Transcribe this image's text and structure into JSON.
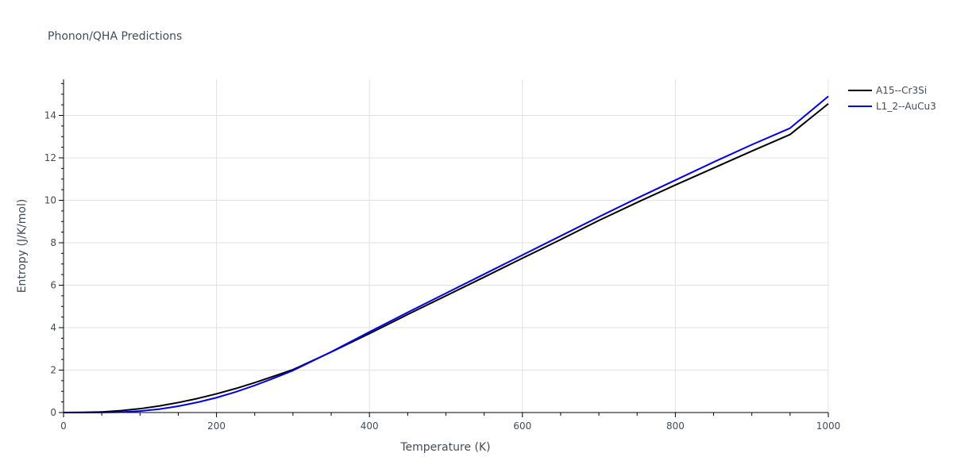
{
  "chart_data": {
    "type": "line",
    "title": "Phonon/QHA Predictions",
    "xlabel": "Temperature (K)",
    "ylabel": "Entropy (J/K/mol)",
    "xlim": [
      0,
      1000
    ],
    "ylim": [
      0,
      15.7
    ],
    "xticks": [
      0,
      200,
      400,
      600,
      800,
      1000
    ],
    "yticks": [
      0,
      2,
      4,
      6,
      8,
      10,
      12,
      14
    ],
    "grid": true,
    "legend_position": "top-right",
    "series": [
      {
        "name": "A15--Cr3Si",
        "color": "#000000",
        "x": [
          0,
          25,
          50,
          75,
          100,
          125,
          150,
          175,
          200,
          225,
          250,
          275,
          300,
          350,
          400,
          450,
          500,
          550,
          600,
          650,
          700,
          750,
          800,
          850,
          900,
          950,
          1000
        ],
        "y": [
          0,
          0.01,
          0.03,
          0.09,
          0.18,
          0.31,
          0.47,
          0.66,
          0.88,
          1.13,
          1.41,
          1.71,
          2.02,
          2.85,
          3.72,
          4.62,
          5.5,
          6.38,
          7.27,
          8.15,
          9.05,
          9.9,
          10.72,
          11.52,
          12.32,
          13.1,
          14.55
        ]
      },
      {
        "name": "L1_2--AuCu3",
        "color": "#0000ee",
        "x": [
          0,
          25,
          50,
          75,
          100,
          125,
          150,
          175,
          200,
          225,
          250,
          275,
          300,
          350,
          400,
          450,
          500,
          550,
          600,
          650,
          700,
          750,
          800,
          850,
          900,
          950,
          1000
        ],
        "y": [
          0,
          0,
          0.005,
          0.02,
          0.07,
          0.16,
          0.3,
          0.48,
          0.7,
          0.97,
          1.28,
          1.62,
          1.98,
          2.86,
          3.8,
          4.72,
          5.62,
          6.52,
          7.42,
          8.32,
          9.22,
          10.1,
          10.95,
          11.8,
          12.62,
          13.4,
          14.9
        ]
      }
    ]
  }
}
